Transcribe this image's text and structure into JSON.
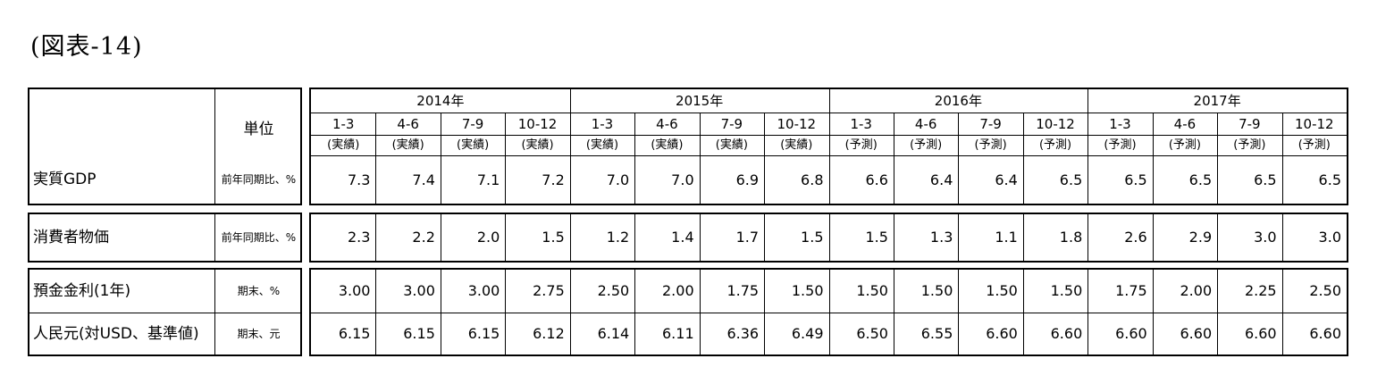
{
  "title": "(図表-14)",
  "unit_header": "単位",
  "years": [
    "2014年",
    "2015年",
    "2016年",
    "2017年"
  ],
  "quarters": [
    "1-3",
    "4-6",
    "7-9",
    "10-12",
    "1-3",
    "4-6",
    "7-9",
    "10-12",
    "1-3",
    "4-6",
    "7-9",
    "10-12",
    "1-3",
    "4-6",
    "7-9",
    "10-12"
  ],
  "statuses": [
    "(実績)",
    "(実績)",
    "(実績)",
    "(実績)",
    "(実績)",
    "(実績)",
    "(実績)",
    "(実績)",
    "(予測)",
    "(予測)",
    "(予測)",
    "(予測)",
    "(予測)",
    "(予測)",
    "(予測)",
    "(予測)"
  ],
  "rows": [
    {
      "label": "実質GDP",
      "unit": "前年同期比、%",
      "values": [
        "7.3",
        "7.4",
        "7.1",
        "7.2",
        "7.0",
        "7.0",
        "6.9",
        "6.8",
        "6.6",
        "6.4",
        "6.4",
        "6.5",
        "6.5",
        "6.5",
        "6.5",
        "6.5"
      ]
    },
    {
      "label": "消費者物価",
      "unit": "前年同期比、%",
      "values": [
        "2.3",
        "2.2",
        "2.0",
        "1.5",
        "1.2",
        "1.4",
        "1.7",
        "1.5",
        "1.5",
        "1.3",
        "1.1",
        "1.8",
        "2.6",
        "2.9",
        "3.0",
        "3.0"
      ]
    },
    {
      "label": "預金金利(1年)",
      "unit": "期末、%",
      "values": [
        "3.00",
        "3.00",
        "3.00",
        "2.75",
        "2.50",
        "2.00",
        "1.75",
        "1.50",
        "1.50",
        "1.50",
        "1.50",
        "1.50",
        "1.75",
        "2.00",
        "2.25",
        "2.50"
      ]
    },
    {
      "label": "人民元(対USD、基準値)",
      "unit": "期末、元",
      "values": [
        "6.15",
        "6.15",
        "6.15",
        "6.12",
        "6.14",
        "6.11",
        "6.36",
        "6.49",
        "6.50",
        "6.55",
        "6.60",
        "6.60",
        "6.60",
        "6.60",
        "6.60",
        "6.60"
      ]
    }
  ]
}
